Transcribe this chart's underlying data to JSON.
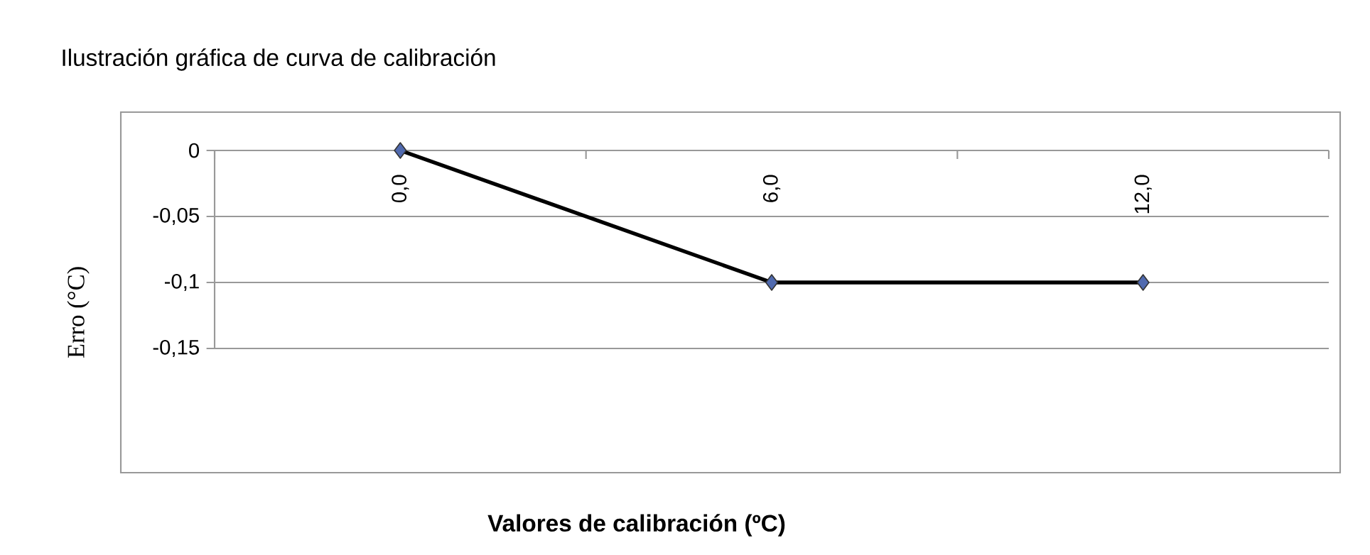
{
  "chart_data": {
    "type": "line",
    "title": "Ilustración gráfica de curva de calibración",
    "ylabel": "Erro (°C)",
    "annotations": [
      "Valores de calibración (ºC)"
    ],
    "categories": [
      "0,0",
      "6,0",
      "12,0"
    ],
    "series": [
      {
        "color": "#000000",
        "values": [
          0,
          -0.1,
          -0.1
        ]
      }
    ],
    "ylim": [
      -0.15,
      0
    ],
    "yticks": [
      0,
      {
        "value": -0.05,
        "label": "-0,05"
      },
      {
        "value": -0.1,
        "label": "-0,1"
      },
      {
        "value": -0.15,
        "label": "-0,15"
      }
    ],
    "grid": "y",
    "marker": "diamond",
    "line_style": "solid"
  }
}
